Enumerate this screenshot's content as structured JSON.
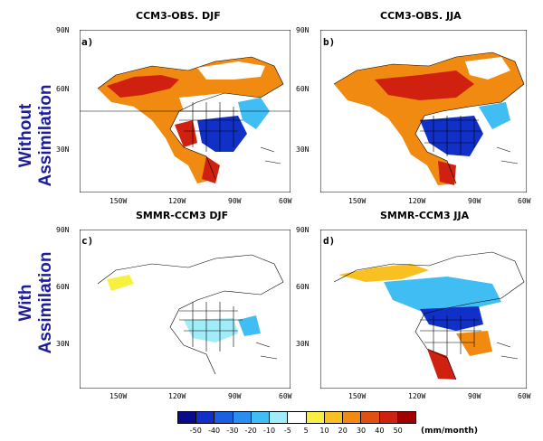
{
  "rows": {
    "top": {
      "line1": "Without",
      "line2": "Assimilation"
    },
    "bottom": {
      "line1": "With",
      "line2": "Assimilation"
    }
  },
  "panels": [
    {
      "id": "a",
      "letter": "a)",
      "title": "CCM3-OBS. DJF"
    },
    {
      "id": "b",
      "letter": "b)",
      "title": "CCM3-OBS. JJA"
    },
    {
      "id": "c",
      "letter": "c)",
      "title": "SMMR-CCM3 DJF"
    },
    {
      "id": "d",
      "letter": "d)",
      "title": "SMMR-CCM3 JJA"
    }
  ],
  "axes": {
    "lat_ticks": [
      "90N",
      "60N",
      "30N"
    ],
    "lon_ticks": [
      "150W",
      "120W",
      "90W",
      "60W"
    ]
  },
  "colorbar": {
    "labels": [
      "-50",
      "-40",
      "-30",
      "-20",
      "-10",
      "-5",
      "5",
      "10",
      "20",
      "30",
      "40",
      "50"
    ],
    "colors": [
      "#0a0a8c",
      "#1030c8",
      "#1a60e0",
      "#2a8ef0",
      "#40bef4",
      "#a0ecf8",
      "#ffffff",
      "#f8f040",
      "#f8c020",
      "#f08a10",
      "#e05010",
      "#d02010",
      "#a00000"
    ],
    "unit": "(mm/month)"
  }
}
